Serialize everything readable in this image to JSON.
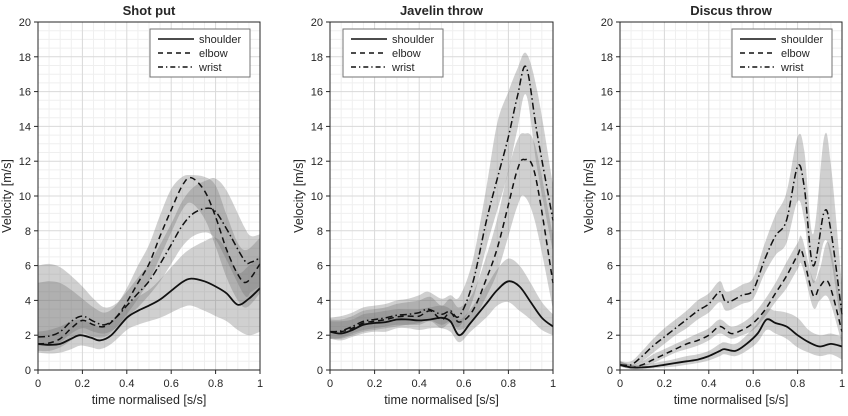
{
  "figure": {
    "background": "#ffffff",
    "line_color": "#111111",
    "band_color": "#6e6e6e",
    "band_opacity": 0.32,
    "grid_major": "#d9d9d9",
    "grid_minor": "#efefef",
    "axis_color": "#262626",
    "legend_border": "#737373"
  },
  "chart_data": [
    {
      "type": "line",
      "title": "Shot put",
      "xlabel": "time normalised [s/s]",
      "ylabel": "Velocity [m/s]",
      "xlim": [
        0,
        1
      ],
      "ylim": [
        0,
        20
      ],
      "xticks": [
        0,
        0.2,
        0.4,
        0.6,
        0.8,
        1
      ],
      "xtick_labels": [
        "0",
        "0.2",
        "0.4",
        "0.6",
        "0.8",
        "1"
      ],
      "yticks": [
        0,
        2,
        4,
        6,
        8,
        10,
        12,
        14,
        16,
        18,
        20
      ],
      "ytick_labels": [
        "0",
        "2",
        "4",
        "6",
        "8",
        "10",
        "12",
        "14",
        "16",
        "18",
        "20"
      ],
      "grid": "major+minor",
      "legend": {
        "position": "top-right",
        "entries": [
          {
            "label": "shoulder",
            "style": "solid"
          },
          {
            "label": "elbow",
            "style": "dashed"
          },
          {
            "label": "wrist",
            "style": "dashdot"
          }
        ]
      },
      "series": [
        {
          "name": "shoulder",
          "style": "solid",
          "x": [
            0,
            0.05,
            0.1,
            0.15,
            0.19,
            0.24,
            0.28,
            0.33,
            0.4,
            0.45,
            0.5,
            0.55,
            0.6,
            0.65,
            0.69,
            0.75,
            0.8,
            0.85,
            0.9,
            0.95,
            1.0
          ],
          "y": [
            1.5,
            1.45,
            1.5,
            1.8,
            2.0,
            1.85,
            1.7,
            2.0,
            3.0,
            3.4,
            3.7,
            4.05,
            4.55,
            5.05,
            5.25,
            5.1,
            4.8,
            4.4,
            3.75,
            4.1,
            4.7
          ],
          "band_lo": [
            1.0,
            0.95,
            1.0,
            1.2,
            1.4,
            1.3,
            1.2,
            1.5,
            2.3,
            2.6,
            2.8,
            3.0,
            3.3,
            3.6,
            3.7,
            3.4,
            3.1,
            2.8,
            2.3,
            2.0,
            2.2
          ],
          "band_hi": [
            2.2,
            2.3,
            2.5,
            2.8,
            2.9,
            2.7,
            2.5,
            2.8,
            3.7,
            4.2,
            4.6,
            5.2,
            5.9,
            6.6,
            7.0,
            7.4,
            7.6,
            6.9,
            5.6,
            6.0,
            6.5
          ]
        },
        {
          "name": "elbow",
          "style": "dashed",
          "x": [
            0,
            0.05,
            0.1,
            0.15,
            0.2,
            0.25,
            0.3,
            0.35,
            0.4,
            0.45,
            0.5,
            0.55,
            0.6,
            0.65,
            0.69,
            0.75,
            0.8,
            0.85,
            0.9,
            0.94,
            1.0
          ],
          "y": [
            1.5,
            1.55,
            1.8,
            2.4,
            2.85,
            2.6,
            2.5,
            3.0,
            3.9,
            5.0,
            6.1,
            7.7,
            9.2,
            10.6,
            11.05,
            10.3,
            8.8,
            6.9,
            5.5,
            5.05,
            6.1
          ],
          "band_lo": [
            1.1,
            1.1,
            1.3,
            1.7,
            2.1,
            1.9,
            1.9,
            2.4,
            3.2,
            4.1,
            5.1,
            6.5,
            7.9,
            9.2,
            9.6,
            8.7,
            7.1,
            5.3,
            4.0,
            3.6,
            4.4
          ],
          "band_hi": [
            5.0,
            5.1,
            5.0,
            4.6,
            4.1,
            3.6,
            3.3,
            3.7,
            4.7,
            6.0,
            7.2,
            8.9,
            10.4,
            11.1,
            11.2,
            11.1,
            10.6,
            8.9,
            7.3,
            6.9,
            7.6
          ]
        },
        {
          "name": "wrist",
          "style": "dashdot",
          "x": [
            0,
            0.05,
            0.1,
            0.15,
            0.2,
            0.25,
            0.3,
            0.35,
            0.4,
            0.45,
            0.5,
            0.55,
            0.6,
            0.65,
            0.7,
            0.76,
            0.8,
            0.85,
            0.93,
            0.96,
            1.0
          ],
          "y": [
            1.9,
            1.95,
            2.2,
            2.8,
            3.1,
            2.8,
            2.6,
            3.0,
            3.7,
            4.4,
            5.1,
            6.1,
            7.2,
            8.3,
            9.0,
            9.3,
            9.1,
            8.1,
            6.3,
            6.2,
            6.45
          ],
          "band_lo": [
            1.4,
            1.4,
            1.6,
            2.1,
            2.4,
            2.2,
            2.1,
            2.4,
            3.0,
            3.6,
            4.3,
            5.1,
            6.1,
            7.1,
            7.7,
            7.9,
            7.5,
            6.3,
            4.3,
            4.5,
            4.8
          ],
          "band_hi": [
            6.0,
            6.1,
            5.9,
            5.4,
            4.8,
            4.1,
            3.6,
            3.8,
            4.5,
            5.3,
            6.1,
            7.2,
            8.4,
            9.7,
            10.5,
            10.9,
            11.0,
            10.3,
            8.2,
            7.7,
            7.8
          ]
        }
      ]
    },
    {
      "type": "line",
      "title": "Javelin throw",
      "xlabel": "time normalised [s/s]",
      "ylabel": "Velocity [m/s]",
      "xlim": [
        0,
        1
      ],
      "ylim": [
        0,
        20
      ],
      "xticks": [
        0,
        0.2,
        0.4,
        0.6,
        0.8,
        1
      ],
      "xtick_labels": [
        "0",
        "0.2",
        "0.4",
        "0.6",
        "0.8",
        "1"
      ],
      "yticks": [
        0,
        2,
        4,
        6,
        8,
        10,
        12,
        14,
        16,
        18,
        20
      ],
      "ytick_labels": [
        "0",
        "2",
        "4",
        "6",
        "8",
        "10",
        "12",
        "14",
        "16",
        "18",
        "20"
      ],
      "grid": "major+minor",
      "legend": {
        "position": "top-left",
        "entries": [
          {
            "label": "shoulder",
            "style": "solid"
          },
          {
            "label": "elbow",
            "style": "dashed"
          },
          {
            "label": "wrist",
            "style": "dashdot"
          }
        ]
      },
      "series": [
        {
          "name": "shoulder",
          "style": "solid",
          "x": [
            0,
            0.05,
            0.1,
            0.15,
            0.2,
            0.25,
            0.3,
            0.35,
            0.4,
            0.45,
            0.5,
            0.54,
            0.58,
            0.63,
            0.7,
            0.75,
            0.8,
            0.85,
            0.9,
            0.95,
            1.0
          ],
          "y": [
            2.2,
            2.1,
            2.3,
            2.6,
            2.7,
            2.75,
            2.9,
            2.9,
            2.85,
            2.9,
            3.0,
            2.8,
            2.0,
            2.7,
            3.8,
            4.6,
            5.1,
            4.8,
            3.9,
            3.0,
            2.5
          ],
          "band_lo": [
            1.8,
            1.7,
            1.9,
            2.1,
            2.2,
            2.2,
            2.4,
            2.4,
            2.3,
            2.4,
            2.4,
            2.2,
            1.6,
            2.2,
            3.0,
            3.7,
            3.9,
            3.4,
            2.9,
            2.3,
            2.0
          ],
          "band_hi": [
            2.8,
            2.8,
            2.9,
            3.2,
            3.3,
            3.4,
            3.5,
            3.5,
            3.5,
            3.6,
            3.7,
            3.5,
            2.9,
            3.5,
            4.8,
            5.8,
            6.4,
            6.0,
            5.0,
            3.9,
            3.2
          ]
        },
        {
          "name": "elbow",
          "style": "dashed",
          "x": [
            0,
            0.05,
            0.1,
            0.15,
            0.2,
            0.25,
            0.3,
            0.35,
            0.4,
            0.45,
            0.5,
            0.54,
            0.58,
            0.64,
            0.7,
            0.75,
            0.8,
            0.84,
            0.87,
            0.92,
            1.0
          ],
          "y": [
            2.2,
            2.2,
            2.4,
            2.7,
            2.8,
            2.9,
            3.05,
            3.1,
            3.1,
            3.4,
            2.9,
            3.3,
            2.75,
            3.4,
            5.2,
            7.0,
            9.5,
            11.5,
            12.1,
            11.2,
            5.0
          ],
          "band_lo": [
            1.8,
            1.8,
            2.0,
            2.2,
            2.3,
            2.4,
            2.5,
            2.6,
            2.6,
            2.8,
            2.4,
            2.7,
            2.3,
            2.8,
            4.2,
            5.6,
            7.7,
            9.4,
            10.0,
            8.5,
            3.5
          ],
          "band_hi": [
            2.9,
            2.9,
            3.1,
            3.4,
            3.5,
            3.6,
            3.8,
            3.9,
            4.0,
            4.2,
            3.7,
            4.1,
            3.6,
            4.4,
            6.5,
            8.7,
            11.5,
            13.2,
            13.6,
            12.9,
            7.7
          ]
        },
        {
          "name": "wrist",
          "style": "dashdot",
          "x": [
            0,
            0.05,
            0.1,
            0.15,
            0.2,
            0.25,
            0.3,
            0.35,
            0.4,
            0.44,
            0.5,
            0.54,
            0.58,
            0.64,
            0.7,
            0.75,
            0.8,
            0.84,
            0.88,
            0.93,
            1.0
          ],
          "y": [
            2.2,
            2.25,
            2.5,
            2.8,
            2.9,
            3.0,
            3.15,
            3.2,
            3.3,
            3.5,
            3.2,
            3.4,
            3.1,
            5.0,
            8.5,
            11.0,
            13.4,
            15.7,
            17.4,
            13.5,
            8.6
          ],
          "band_lo": [
            1.8,
            1.85,
            2.1,
            2.3,
            2.4,
            2.5,
            2.6,
            2.6,
            2.7,
            2.9,
            2.6,
            2.8,
            2.5,
            4.0,
            7.0,
            9.2,
            11.4,
            13.8,
            15.8,
            11.5,
            6.8
          ],
          "band_hi": [
            3.0,
            3.1,
            3.3,
            3.6,
            3.7,
            3.8,
            4.0,
            4.1,
            4.3,
            4.5,
            4.1,
            4.3,
            4.2,
            6.3,
            10.4,
            14.2,
            16.0,
            17.3,
            18.2,
            16.0,
            10.6
          ]
        }
      ]
    },
    {
      "type": "line",
      "title": "Discus throw",
      "xlabel": "time normalised [s/s]",
      "ylabel": "Velocity [m/s]",
      "xlim": [
        0,
        1
      ],
      "ylim": [
        0,
        20
      ],
      "xticks": [
        0,
        0.2,
        0.4,
        0.6,
        0.8,
        1
      ],
      "xtick_labels": [
        "0",
        "0.2",
        "0.4",
        "0.6",
        "0.8",
        "1"
      ],
      "yticks": [
        0,
        2,
        4,
        6,
        8,
        10,
        12,
        14,
        16,
        18,
        20
      ],
      "ytick_labels": [
        "0",
        "2",
        "4",
        "6",
        "8",
        "10",
        "12",
        "14",
        "16",
        "18",
        "20"
      ],
      "grid": "major+minor",
      "legend": {
        "position": "top-right",
        "entries": [
          {
            "label": "shoulder",
            "style": "solid"
          },
          {
            "label": "elbow",
            "style": "dashed"
          },
          {
            "label": "wrist",
            "style": "dashdot"
          }
        ]
      },
      "series": [
        {
          "name": "shoulder",
          "style": "solid",
          "x": [
            0,
            0.05,
            0.1,
            0.15,
            0.2,
            0.25,
            0.3,
            0.35,
            0.4,
            0.45,
            0.47,
            0.52,
            0.57,
            0.62,
            0.66,
            0.7,
            0.75,
            0.8,
            0.85,
            0.9,
            0.95,
            1.0
          ],
          "y": [
            0.3,
            0.15,
            0.15,
            0.2,
            0.3,
            0.4,
            0.5,
            0.6,
            0.8,
            1.1,
            1.2,
            1.1,
            1.5,
            2.1,
            2.9,
            2.7,
            2.5,
            2.0,
            1.6,
            1.35,
            1.5,
            1.35
          ],
          "band_lo": [
            0.2,
            0.05,
            0.05,
            0.1,
            0.15,
            0.2,
            0.3,
            0.4,
            0.55,
            0.8,
            0.9,
            0.8,
            1.1,
            1.6,
            2.3,
            2.1,
            1.8,
            1.3,
            1.0,
            0.8,
            0.9,
            0.6
          ],
          "band_hi": [
            0.5,
            0.3,
            0.3,
            0.4,
            0.5,
            0.65,
            0.8,
            0.9,
            1.1,
            1.5,
            1.6,
            1.5,
            2.0,
            2.7,
            3.5,
            3.4,
            3.3,
            3.0,
            2.3,
            2.0,
            2.1,
            1.9
          ]
        },
        {
          "name": "elbow",
          "style": "dashed",
          "x": [
            0,
            0.05,
            0.1,
            0.15,
            0.2,
            0.25,
            0.3,
            0.35,
            0.4,
            0.45,
            0.5,
            0.55,
            0.6,
            0.65,
            0.7,
            0.75,
            0.8,
            0.82,
            0.87,
            0.9,
            0.94,
            1.0
          ],
          "y": [
            0.3,
            0.15,
            0.3,
            0.6,
            0.9,
            1.2,
            1.5,
            1.7,
            2.0,
            2.5,
            2.1,
            2.3,
            2.7,
            3.4,
            4.4,
            5.4,
            6.6,
            6.8,
            4.3,
            4.8,
            5.0,
            2.2
          ],
          "band_lo": [
            0.2,
            0.1,
            0.2,
            0.4,
            0.7,
            1.0,
            1.2,
            1.4,
            1.7,
            2.1,
            1.8,
            2.0,
            2.3,
            3.0,
            3.9,
            4.7,
            5.8,
            6.0,
            3.6,
            4.0,
            4.1,
            1.5
          ],
          "band_hi": [
            0.5,
            0.3,
            0.5,
            0.9,
            1.2,
            1.5,
            1.8,
            2.1,
            2.4,
            2.9,
            2.5,
            2.7,
            3.2,
            4.0,
            5.0,
            6.2,
            7.3,
            7.6,
            5.2,
            5.8,
            7.3,
            3.4
          ]
        },
        {
          "name": "wrist",
          "style": "dashdot",
          "x": [
            0,
            0.05,
            0.1,
            0.15,
            0.2,
            0.25,
            0.3,
            0.35,
            0.4,
            0.45,
            0.48,
            0.55,
            0.6,
            0.65,
            0.7,
            0.75,
            0.8,
            0.83,
            0.87,
            0.92,
            0.95,
            1.0
          ],
          "y": [
            0.3,
            0.3,
            0.8,
            1.4,
            1.9,
            2.4,
            2.9,
            3.4,
            3.8,
            4.5,
            3.9,
            4.3,
            4.6,
            6.3,
            7.7,
            8.6,
            11.7,
            10.5,
            6.0,
            9.1,
            8.0,
            3.2
          ],
          "band_lo": [
            0.2,
            0.2,
            0.5,
            1.0,
            1.5,
            2.0,
            2.4,
            2.9,
            3.3,
            3.9,
            3.4,
            3.8,
            4.1,
            5.5,
            6.6,
            7.3,
            9.7,
            8.6,
            5.0,
            7.4,
            6.4,
            2.2
          ],
          "band_hi": [
            0.5,
            0.5,
            1.1,
            1.8,
            2.4,
            2.9,
            3.4,
            4.0,
            4.4,
            5.1,
            4.5,
            4.9,
            5.3,
            7.2,
            8.9,
            10.2,
            13.4,
            12.6,
            7.8,
            13.4,
            11.8,
            4.8
          ]
        }
      ]
    }
  ]
}
